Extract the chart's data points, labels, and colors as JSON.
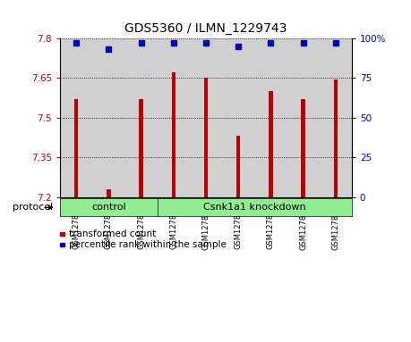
{
  "title": "GDS5360 / ILMN_1229743",
  "samples": [
    "GSM1278259",
    "GSM1278260",
    "GSM1278261",
    "GSM1278262",
    "GSM1278263",
    "GSM1278264",
    "GSM1278265",
    "GSM1278266",
    "GSM1278267"
  ],
  "transformed_count": [
    7.57,
    7.23,
    7.57,
    7.67,
    7.65,
    7.43,
    7.6,
    7.57,
    7.645
  ],
  "percentile_rank": [
    97,
    93,
    97,
    97,
    97,
    95,
    97,
    97,
    97
  ],
  "ylim": [
    7.2,
    7.8
  ],
  "yticks_left": [
    7.2,
    7.35,
    7.5,
    7.65,
    7.8
  ],
  "yticks_right": [
    0,
    25,
    50,
    75,
    100
  ],
  "bar_color": "#bb0000",
  "dot_color": "#0000bb",
  "group_boundary": 3,
  "group_left_label": "control",
  "group_right_label": "Csnk1a1 knockdown",
  "group_color": "#90ee90",
  "legend_bar_label": "transformed count",
  "legend_dot_label": "percentile rank within the sample",
  "protocol_label": "protocol",
  "col_bg_color": "#d0d0d0",
  "plot_bg_color": "#ffffff",
  "title_fontsize": 10,
  "tick_fontsize": 7.5,
  "sample_fontsize": 6,
  "legend_fontsize": 7.5
}
